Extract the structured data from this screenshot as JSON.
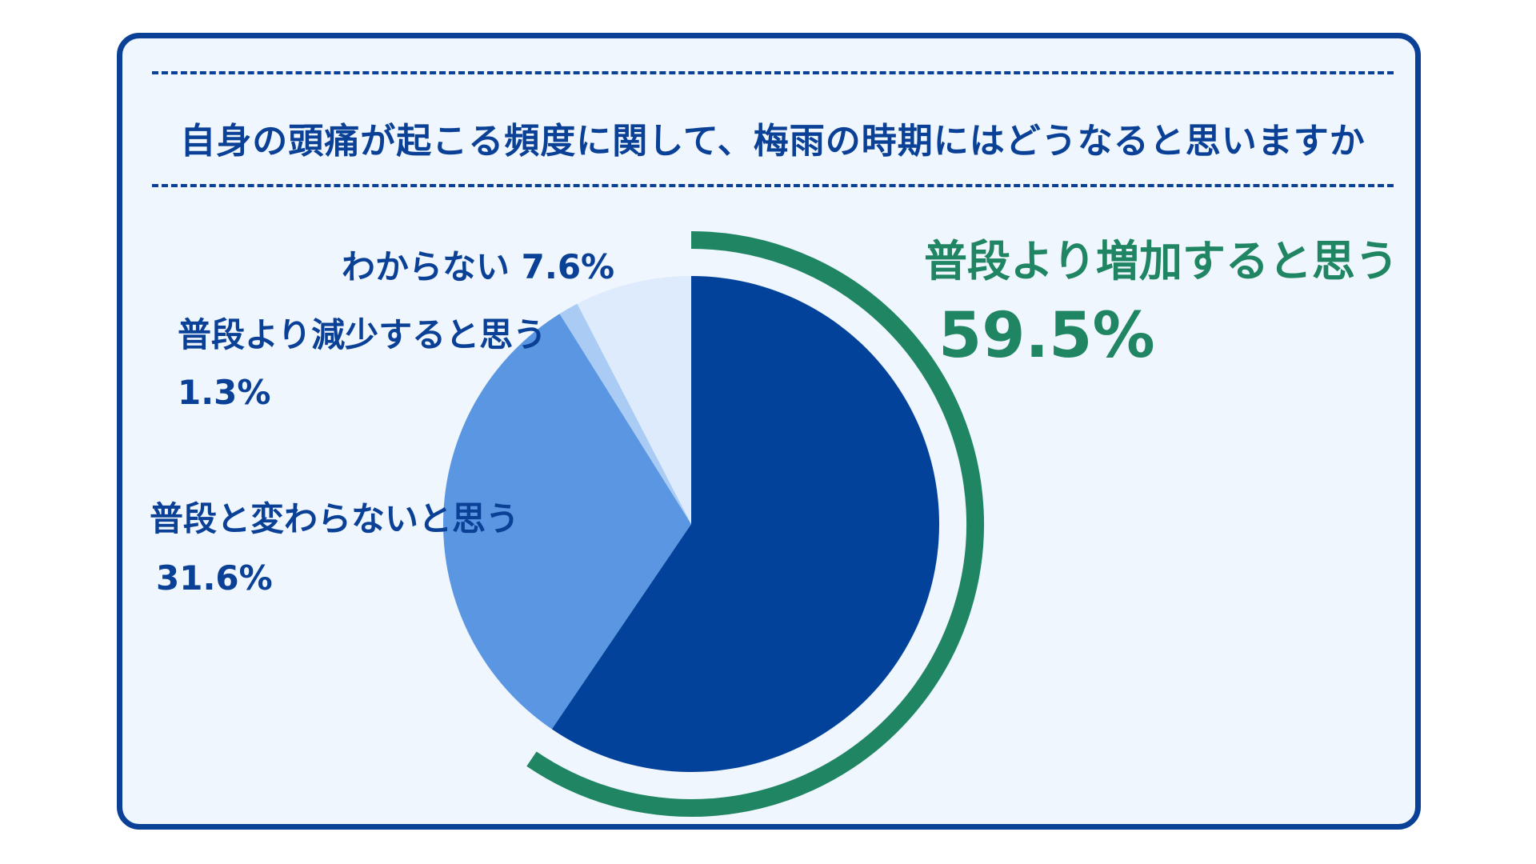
{
  "title": "自身の頭痛が起こる頻度に関して、梅雨の時期にはどうなると思いますか",
  "colors": {
    "frame_border": "#0a4196",
    "frame_bg": "#eff6fd",
    "highlight_arc": "#208562"
  },
  "chart_data": {
    "type": "pie",
    "title": "自身の頭痛が起こる頻度に関して、梅雨の時期にはどうなると思いますか",
    "start_angle_deg": 0,
    "direction": "clockwise",
    "highlight_slice": 0,
    "slices": [
      {
        "label": "普段より増加すると思う",
        "value": 59.5,
        "value_text": "59.5%",
        "color": "#02429a"
      },
      {
        "label": "普段と変わらないと思う",
        "value": 31.6,
        "value_text": "31.6%",
        "color": "#5a96e1"
      },
      {
        "label": "普段より減少すると思う",
        "value": 1.3,
        "value_text": "1.3%",
        "color": "#a9cbf4"
      },
      {
        "label": "わからない",
        "value": 7.6,
        "value_text": "7.6%",
        "color": "#deebfc"
      }
    ]
  }
}
